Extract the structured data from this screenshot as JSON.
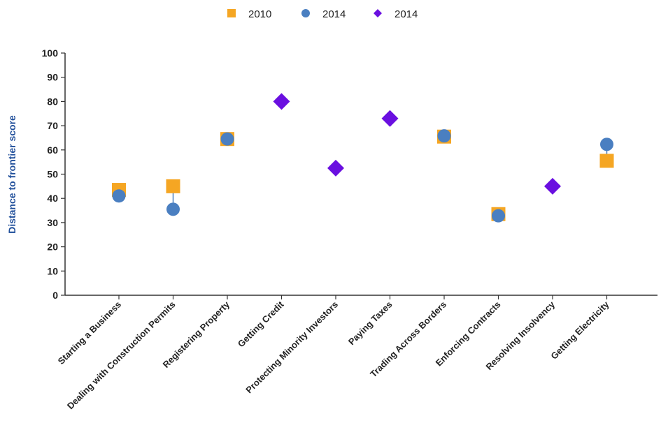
{
  "chart_data": {
    "type": "scatter",
    "title": "",
    "xlabel": "",
    "ylabel": "Distance to frontier score",
    "ylim": [
      0,
      100
    ],
    "yticks": [
      0,
      10,
      20,
      30,
      40,
      50,
      60,
      70,
      80,
      90,
      100
    ],
    "grid": false,
    "legend_position": "top-center",
    "categories": [
      "Starting a Business",
      "Dealing with Construction Permits",
      "Registering Property",
      "Getting Credit",
      "Protecting Minority Investors",
      "Paying Taxes",
      "Trading Across Borders",
      "Enforcing Contracts",
      "Resolving Insolvency",
      "Getting Electricity"
    ],
    "series": [
      {
        "name": "2010",
        "marker": "square",
        "color": "#f5a623",
        "values": [
          43.5,
          45,
          64.5,
          null,
          null,
          null,
          65.5,
          33.5,
          null,
          55.5
        ]
      },
      {
        "name": "2014",
        "marker": "circle",
        "color": "#4a7fc1",
        "values": [
          41,
          35.5,
          64.5,
          null,
          null,
          null,
          65.8,
          32.8,
          null,
          62.3
        ]
      },
      {
        "name": "2014",
        "marker": "diamond",
        "color": "#6a0fe0",
        "values": [
          null,
          null,
          null,
          80,
          52.5,
          73,
          null,
          null,
          45,
          null
        ]
      }
    ],
    "ylabel_color": "#1f4e9a",
    "connector_color": "#4a7fc1"
  }
}
